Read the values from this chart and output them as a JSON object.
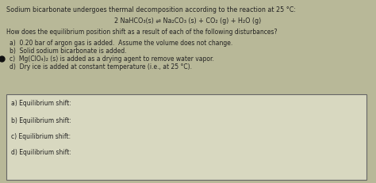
{
  "title_line": "Sodium bicarbonate undergoes thermal decomposition according to the reaction at 25 °C:",
  "reaction": "2 NaHCO₃(s) ⇌ Na₂CO₃ (s) + CO₂ (g) + H₂O (g)",
  "question": "How does the equilibrium position shift as a result of each of the following disturbances?",
  "items": [
    "a)  0.20 bar of argon gas is added.  Assume the volume does not change.",
    "b)  Solid sodium bicarbonate is added.",
    "c)  Mg(ClO₄)₂ (s) is added as a drying agent to remove water vapor.",
    "d)  Dry ice is added at constant temperature (i.e., at 25 °C)."
  ],
  "answer_labels": [
    "a) Equilibrium shift:",
    "b) Equilibrium shift:",
    "c) Equilibrium shift:",
    "d) Equilibrium shift:"
  ],
  "bg_color": "#b8b898",
  "box_bg": "#d8d8c0",
  "text_color": "#222222",
  "dot_color": "#111111",
  "title_fontsize": 5.8,
  "body_fontsize": 5.5,
  "reaction_fontsize": 5.8,
  "answer_fontsize": 5.5
}
